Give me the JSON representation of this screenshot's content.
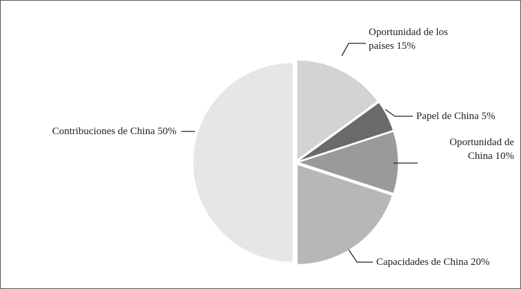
{
  "chart_data": {
    "type": "pie",
    "categories": [
      "Oportunidad de los países",
      "Papel de China",
      "Oportunidad de China",
      "Capacidades de China",
      "Contribuciones de China"
    ],
    "values": [
      15,
      5,
      10,
      20,
      50
    ],
    "value_labels": [
      "15%",
      "5%",
      "10%",
      "20%",
      "50%"
    ],
    "colors": [
      "#d3d3d3",
      "#6a6a6a",
      "#9a9a9a",
      "#b7b7b7",
      "#e6e6e6"
    ]
  }
}
